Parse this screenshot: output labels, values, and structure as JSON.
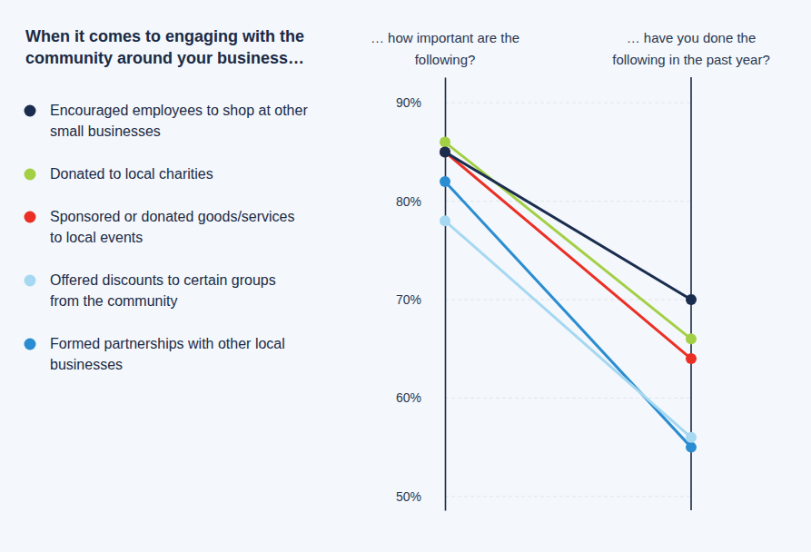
{
  "chart_data": {
    "type": "line",
    "title": "When it comes to engaging with the community around your business…",
    "categories": [
      "… how important are the following?",
      "… have you done the following in the past year?"
    ],
    "series": [
      {
        "name": "Encouraged employees to shop at other small businesses",
        "color": "#1b2d4f",
        "values": [
          85,
          70
        ]
      },
      {
        "name": "Donated to local charities",
        "color": "#a3cf45",
        "values": [
          86,
          66
        ]
      },
      {
        "name": "Sponsored or donated goods/services to local events",
        "color": "#eb2f25",
        "values": [
          85,
          64
        ]
      },
      {
        "name": "Offered discounts to certain groups from the community",
        "color": "#a6d8f2",
        "values": [
          78,
          56
        ]
      },
      {
        "name": "Formed partnerships with other local businesses",
        "color": "#2b8dd1",
        "values": [
          82,
          55
        ]
      }
    ],
    "ylim": [
      48.6,
      92.6
    ],
    "yticks": [
      {
        "value": 50,
        "label": "50%"
      },
      {
        "value": 60,
        "label": "60%"
      },
      {
        "value": 70,
        "label": "70%"
      },
      {
        "value": 80,
        "label": "80%"
      },
      {
        "value": 90,
        "label": "90%"
      }
    ],
    "grid": true,
    "marker": "circle"
  }
}
